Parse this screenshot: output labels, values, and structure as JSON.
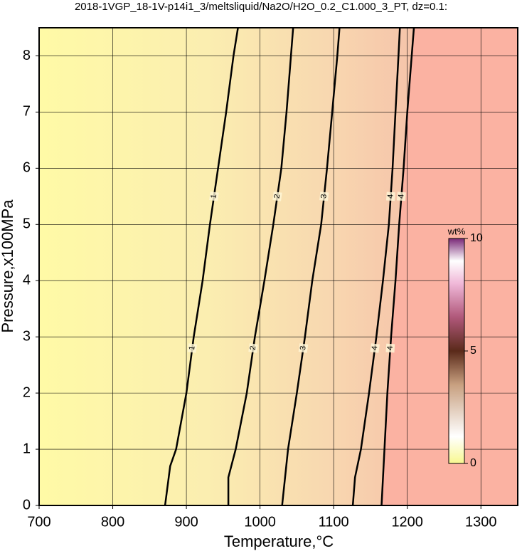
{
  "chart_data": {
    "type": "contour",
    "title": "2018-1VGP_18-1V-p14i1_3/meltsliquid/Na2O/H2O_0.2_C1.000_3_PT, dz=0.1:",
    "x_label": "Temperature,°C",
    "y_label": "Pressure,x100MPa",
    "xlim": [
      700,
      1350
    ],
    "ylim": [
      0,
      8.5
    ],
    "xticks": [
      700,
      800,
      900,
      1000,
      1100,
      1200,
      1300
    ],
    "yticks": [
      0,
      1,
      2,
      3,
      4,
      5,
      6,
      7,
      8
    ],
    "grid": true,
    "series": [
      {
        "name": "1",
        "color": "#000000",
        "x": [
          871,
          878,
          886,
          900,
          910,
          922,
          932,
          943,
          954,
          964,
          970
        ],
        "values": [
          0,
          0.7,
          1,
          2,
          3,
          4,
          5,
          6,
          7,
          8,
          8.5
        ]
      },
      {
        "name": "2",
        "color": "#000000",
        "x": [
          957,
          957,
          967,
          982,
          993,
          1006,
          1018,
          1029,
          1036,
          1042,
          1045
        ],
        "values": [
          0,
          0.5,
          1,
          2,
          3,
          4,
          5,
          6,
          7,
          8,
          8.5
        ]
      },
      {
        "name": "3",
        "color": "#000000",
        "x": [
          1030,
          1038,
          1050,
          1061,
          1071,
          1083,
          1091,
          1098,
          1105,
          1108
        ],
        "values": [
          0,
          1,
          2,
          3,
          4,
          5,
          6,
          7,
          8,
          8.5
        ]
      },
      {
        "name": "4",
        "color": "#000000",
        "x": [
          1126,
          1129,
          1137,
          1148,
          1158,
          1167,
          1175,
          1180,
          1184,
          1188,
          1190
        ],
        "values": [
          0,
          0.5,
          1,
          2,
          3,
          4,
          5,
          6,
          7,
          8,
          8.5
        ]
      },
      {
        "name": "4",
        "color": "#000000",
        "x": [
          1165,
          1169,
          1173,
          1178,
          1184,
          1189,
          1195,
          1200,
          1206,
          1209
        ],
        "values": [
          0,
          1,
          2,
          3,
          4,
          5,
          6,
          7,
          8,
          8.5
        ]
      }
    ],
    "colorbar": {
      "label": "wt%",
      "lim": [
        0,
        10
      ],
      "ticks": [
        0,
        5,
        10
      ]
    }
  }
}
